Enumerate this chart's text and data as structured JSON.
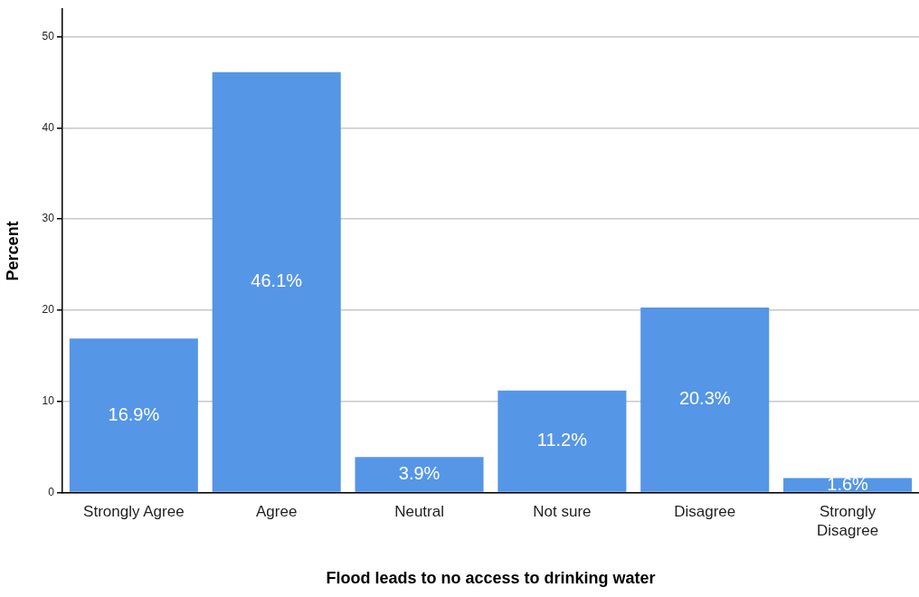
{
  "chart_data": {
    "type": "bar",
    "xlabel": "Flood leads to no access to drinking water",
    "ylabel": "Percent",
    "categories": [
      "Strongly Agree",
      "Agree",
      "Neutral",
      "Not sure",
      "Disagree",
      "Strongly Disagree"
    ],
    "values": [
      16.9,
      46.1,
      3.9,
      11.2,
      20.3,
      1.6
    ],
    "value_labels": [
      "16.9%",
      "46.1%",
      "3.9%",
      "11.2%",
      "20.3%",
      "1.6%"
    ],
    "color": "#5596e6",
    "ylim": [
      0,
      53
    ],
    "yticks": [
      0,
      10,
      20,
      30,
      40,
      50
    ],
    "grid": "y",
    "legend": false
  }
}
